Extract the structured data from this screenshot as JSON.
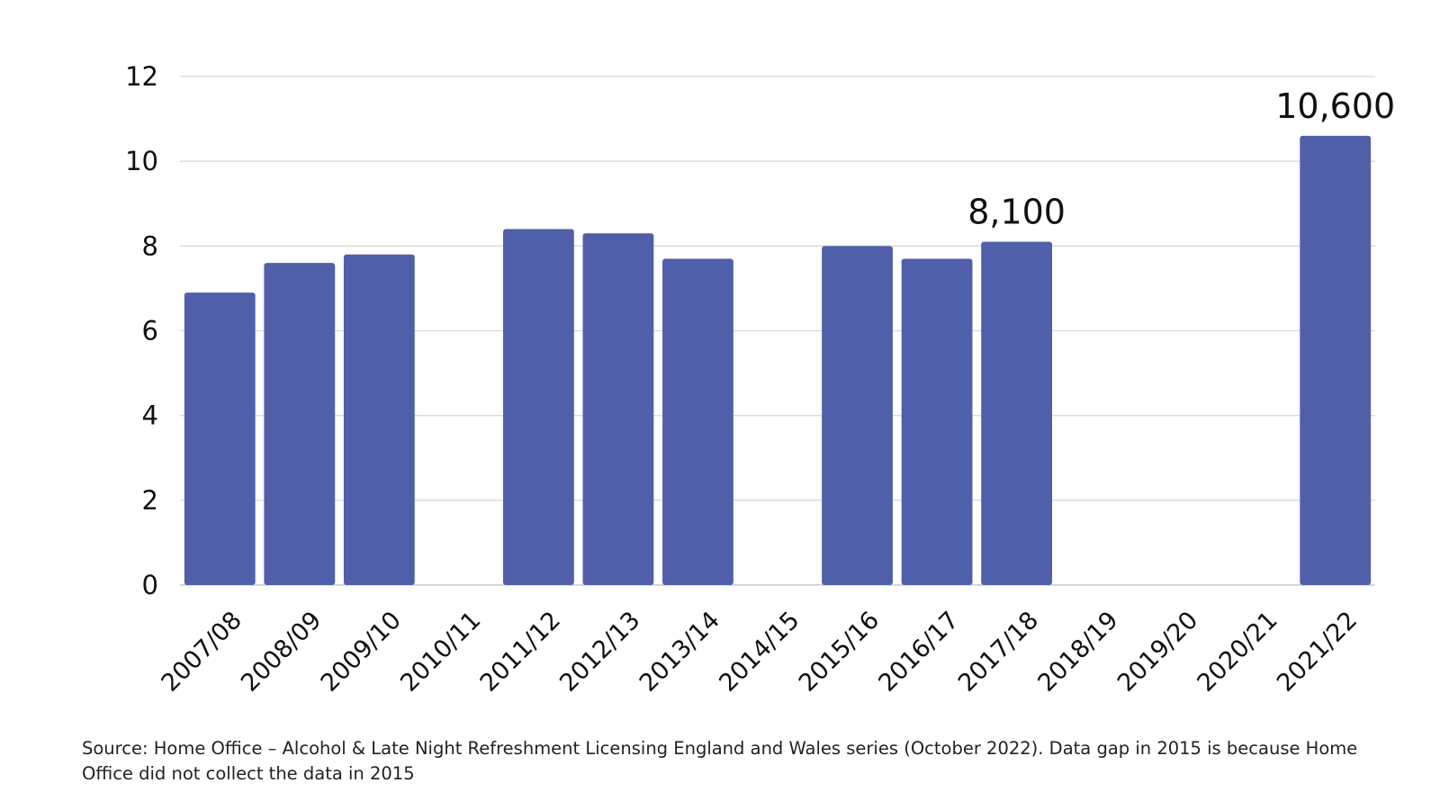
{
  "chart_data": {
    "type": "bar",
    "categories": [
      "2007/08",
      "2008/09",
      "2009/10",
      "2010/11",
      "2011/12",
      "2012/13",
      "2013/14",
      "2014/15",
      "2015/16",
      "2016/17",
      "2017/18",
      "2018/19",
      "2019/20",
      "2020/21",
      "2021/22"
    ],
    "values": [
      6.9,
      7.6,
      7.8,
      null,
      8.4,
      8.3,
      7.7,
      null,
      8.0,
      7.7,
      8.1,
      null,
      null,
      null,
      10.6
    ],
    "data_labels": [
      {
        "category": "2017/18",
        "text": "8,100"
      },
      {
        "category": "2021/22",
        "text": "10,600"
      }
    ],
    "y_ticks": [
      "0",
      "2",
      "4",
      "6",
      "8",
      "10",
      "12"
    ],
    "ylim": [
      0,
      12
    ],
    "grid": true,
    "bar_color": "#4f5fa9",
    "title": "",
    "xlabel": "",
    "ylabel": ""
  },
  "source_note": "Source: Home Office – Alcohol & Late Night Refreshment Licensing England and Wales series (October 2022). Data gap in 2015 is because Home Office did not collect the data in 2015"
}
